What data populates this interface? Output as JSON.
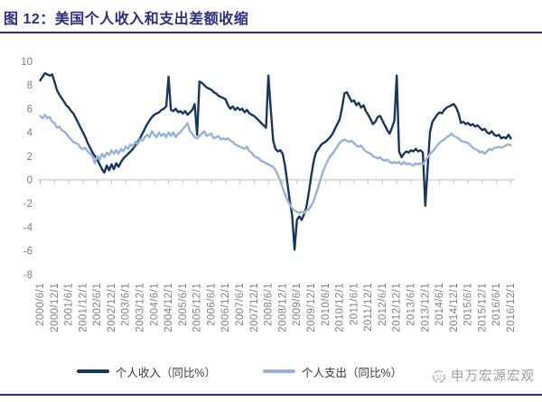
{
  "title": {
    "text": "图 12：美国个人收入和支出差额收缩"
  },
  "watermark": {
    "text": "申万宏源宏观",
    "logo_icon": "sws-smile-logo"
  },
  "chart_data": {
    "type": "line",
    "title": "图 12：美国个人收入和支出差额收缩",
    "xlabel": "",
    "ylabel": "",
    "ylim": [
      -8,
      10
    ],
    "y_ticks": [
      10,
      8,
      6,
      4,
      2,
      0,
      -2,
      -4,
      -6,
      -8
    ],
    "grid": "off",
    "legend_position": "bottom",
    "axis_color": "#bfbfbf",
    "label_color": "#808080",
    "x_monthly_from": "2000/6/1",
    "x_monthly_to": "2016/12/1",
    "x_tick_labels": [
      "2000/6/1",
      "2000/12/1",
      "2001/6/1",
      "2001/12/1",
      "2002/6/1",
      "2002/12/1",
      "2003/6/1",
      "2003/12/1",
      "2004/6/1",
      "2004/12/1",
      "2005/6/1",
      "2005/12/1",
      "2006/6/1",
      "2006/12/1",
      "2007/6/1",
      "2007/12/1",
      "2008/6/1",
      "2008/12/1",
      "2009/6/1",
      "2009/12/1",
      "2010/6/1",
      "2010/12/1",
      "2011/6/1",
      "2011/12/1",
      "2012/6/1",
      "2012/12/1",
      "2013/6/1",
      "2013/12/1",
      "2014/6/1",
      "2014/12/1",
      "2015/6/1",
      "2015/12/1",
      "2016/6/1",
      "2016/12/1"
    ],
    "series": [
      {
        "name": "个人收入（同比%）",
        "color": "#17375d",
        "values": [
          8.4,
          8.7,
          9.0,
          8.9,
          8.8,
          8.9,
          8.3,
          7.6,
          7.2,
          6.9,
          6.6,
          6.3,
          6.1,
          5.8,
          5.6,
          5.2,
          4.8,
          4.4,
          4.0,
          3.6,
          3.1,
          2.7,
          2.3,
          2.0,
          1.7,
          1.3,
          0.9,
          0.6,
          1.2,
          0.8,
          1.3,
          0.9,
          1.4,
          1.1,
          1.5,
          1.8,
          2.0,
          2.2,
          2.4,
          2.6,
          2.9,
          3.2,
          3.5,
          3.9,
          4.3,
          4.7,
          5.0,
          5.3,
          5.5,
          5.6,
          5.7,
          5.9,
          6.0,
          6.2,
          8.7,
          5.9,
          5.8,
          6.0,
          5.7,
          5.8,
          5.6,
          5.8,
          5.5,
          5.7,
          5.9,
          6.4,
          3.8,
          8.3,
          8.2,
          8.0,
          7.8,
          7.7,
          7.6,
          7.4,
          7.3,
          7.1,
          7.0,
          6.9,
          6.8,
          6.3,
          6.0,
          6.2,
          5.9,
          6.1,
          5.9,
          6.0,
          5.7,
          5.9,
          5.6,
          5.5,
          5.4,
          5.2,
          5.0,
          4.8,
          4.6,
          4.4,
          8.8,
          6.0,
          3.3,
          2.6,
          2.4,
          2.5,
          2.2,
          1.2,
          -0.3,
          -1.8,
          -3.0,
          -5.9,
          -3.4,
          -3.1,
          -3.4,
          -2.9,
          -2.3,
          -1.1,
          0.3,
          1.5,
          2.3,
          2.6,
          2.9,
          3.1,
          3.2,
          3.4,
          3.6,
          3.9,
          4.3,
          4.7,
          5.1,
          6.1,
          7.3,
          7.4,
          7.0,
          6.6,
          6.7,
          6.3,
          6.5,
          6.1,
          6.3,
          5.8,
          5.5,
          5.1,
          4.7,
          4.9,
          5.3,
          5.4,
          5.0,
          4.6,
          4.2,
          3.9,
          4.4,
          5.0,
          8.8,
          2.4,
          1.9,
          2.2,
          2.4,
          2.3,
          2.5,
          2.4,
          2.6,
          2.4,
          2.5,
          2.3,
          -2.2,
          1.0,
          4.0,
          4.9,
          5.2,
          5.5,
          5.7,
          5.6,
          5.9,
          6.1,
          6.2,
          6.3,
          6.4,
          6.1,
          5.6,
          4.8,
          4.9,
          4.7,
          4.8,
          4.6,
          4.7,
          4.5,
          4.6,
          4.4,
          4.2,
          4.3,
          4.0,
          3.9,
          4.1,
          3.8,
          3.7,
          3.8,
          3.5,
          3.6,
          3.5,
          3.8,
          3.5
        ]
      },
      {
        "name": "个人支出（同比%）",
        "color": "#95b3d7",
        "values": [
          5.4,
          5.2,
          5.5,
          5.2,
          5.3,
          4.9,
          4.8,
          4.4,
          4.5,
          4.2,
          4.1,
          3.9,
          3.6,
          3.4,
          3.2,
          3.1,
          3.0,
          2.7,
          2.6,
          2.7,
          2.4,
          2.2,
          2.0,
          1.4,
          2.0,
          1.7,
          2.2,
          1.9,
          2.3,
          2.1,
          2.5,
          2.2,
          2.5,
          2.2,
          2.6,
          2.4,
          2.8,
          2.6,
          3.0,
          2.8,
          3.2,
          3.0,
          3.4,
          3.3,
          3.6,
          3.8,
          3.6,
          4.1,
          3.8,
          3.6,
          4.0,
          3.7,
          3.9,
          3.6,
          4.0,
          3.7,
          4.0,
          3.6,
          3.9,
          4.0,
          4.3,
          4.5,
          4.8,
          4.1,
          3.9,
          3.6,
          3.5,
          3.7,
          3.9,
          4.1,
          3.7,
          3.8,
          3.9,
          3.5,
          3.6,
          3.7,
          3.4,
          3.5,
          3.4,
          3.5,
          3.3,
          3.2,
          3.0,
          2.9,
          2.8,
          2.7,
          2.6,
          2.8,
          2.4,
          2.3,
          2.0,
          1.9,
          1.8,
          1.6,
          1.5,
          1.4,
          1.3,
          1.2,
          1.1,
          0.8,
          0.4,
          -0.1,
          -0.7,
          -1.2,
          -1.7,
          -2.1,
          -2.4,
          -2.6,
          -2.7,
          -2.8,
          -2.7,
          -2.8,
          -2.6,
          -2.5,
          -2.2,
          -1.8,
          -1.2,
          -0.6,
          0.1,
          0.7,
          1.2,
          1.6,
          2.0,
          2.2,
          2.5,
          2.8,
          3.1,
          3.3,
          3.4,
          3.3,
          3.2,
          3.3,
          3.1,
          2.9,
          2.8,
          2.9,
          2.6,
          2.4,
          2.3,
          2.2,
          2.0,
          1.9,
          1.8,
          1.9,
          1.7,
          1.6,
          1.7,
          1.5,
          1.4,
          1.5,
          1.4,
          1.5,
          1.3,
          1.5,
          1.3,
          1.4,
          1.3,
          1.2,
          1.4,
          1.3,
          1.4,
          1.3,
          1.6,
          1.9,
          2.2,
          2.4,
          2.6,
          2.9,
          3.1,
          3.3,
          3.4,
          3.6,
          3.7,
          3.9,
          3.7,
          3.6,
          3.5,
          3.3,
          3.2,
          3.2,
          3.1,
          2.9,
          2.7,
          2.6,
          2.5,
          2.3,
          2.4,
          2.2,
          2.4,
          2.6,
          2.5,
          2.7,
          2.7,
          2.8,
          2.7,
          2.8,
          2.9,
          3.0,
          2.9
        ]
      }
    ]
  }
}
